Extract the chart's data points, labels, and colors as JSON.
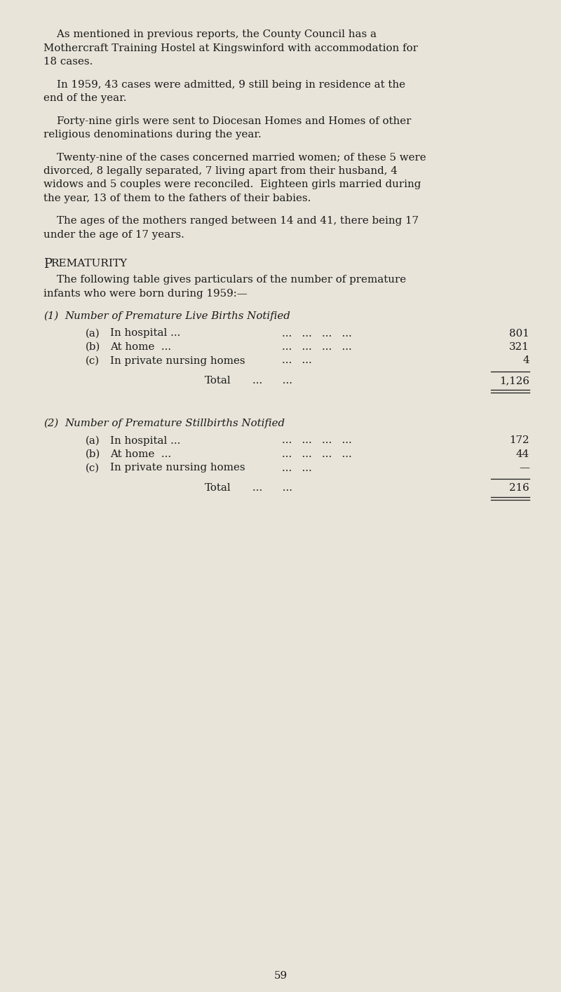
{
  "background_color": "#e8e4d9",
  "text_color": "#1a1a1a",
  "page_number": "59",
  "paragraphs": [
    "    As mentioned in previous reports, the County Council has a\nMothercraft Training Hostel at Kingswinford with accommodation for\n18 cases.",
    "    In 1959, 43 cases were admitted, 9 still being in residence at the\nend of the year.",
    "    Forty-nine girls were sent to Diocesan Homes and Homes of other\nreligious denominations during the year.",
    "    Twenty-nine of the cases concerned married women; of these 5 were\ndivorced, 8 legally separated, 7 living apart from their husband, 4\nwidows and 5 couples were reconciled.  Eighteen girls married during\nthe year, 13 of them to the fathers of their babies.",
    "    The ages of the mothers ranged between 14 and 41, there being 17\nunder the age of 17 years."
  ],
  "section_heading_P": "P",
  "section_heading_rest": "REMATURITY",
  "section_intro_line1": "    The following table gives particulars of the number of premature",
  "section_intro_line2": "infants who were born during 1959:—",
  "table1_heading_num": "(1)",
  "table1_heading_text": "Number of Premature Live Births Notified",
  "table1_rows": [
    {
      "label": "(a)",
      "desc": "In hospital ...",
      "dots": "...   ...   ...   ...",
      "value": "801"
    },
    {
      "label": "(b)",
      "desc": "At home  ...",
      "dots": "...   ...   ...   ...",
      "value": "321"
    },
    {
      "label": "(c)",
      "desc": "In private nursing homes",
      "dots": "...   ...",
      "value": "4"
    }
  ],
  "table1_total_label": "Total",
  "table1_total_dots": "...      ...",
  "table1_total_value": "1,126",
  "table2_heading_num": "(2)",
  "table2_heading_text": "Number of Premature Stillbirths Notified",
  "table2_rows": [
    {
      "label": "(a)",
      "desc": "In hospital ...",
      "dots": "...   ...   ...   ...",
      "value": "172"
    },
    {
      "label": "(b)",
      "desc": "At home  ...",
      "dots": "...   ...   ...   ...",
      "value": "44"
    },
    {
      "label": "(c)",
      "desc": "In private nursing homes",
      "dots": "...   ...",
      "value": "—"
    }
  ],
  "table2_total_label": "Total",
  "table2_total_dots": "...      ...",
  "table2_total_value": "216",
  "font_size_body": 10.8,
  "font_size_section_P": 13.0,
  "font_size_section_rest": 11.0
}
